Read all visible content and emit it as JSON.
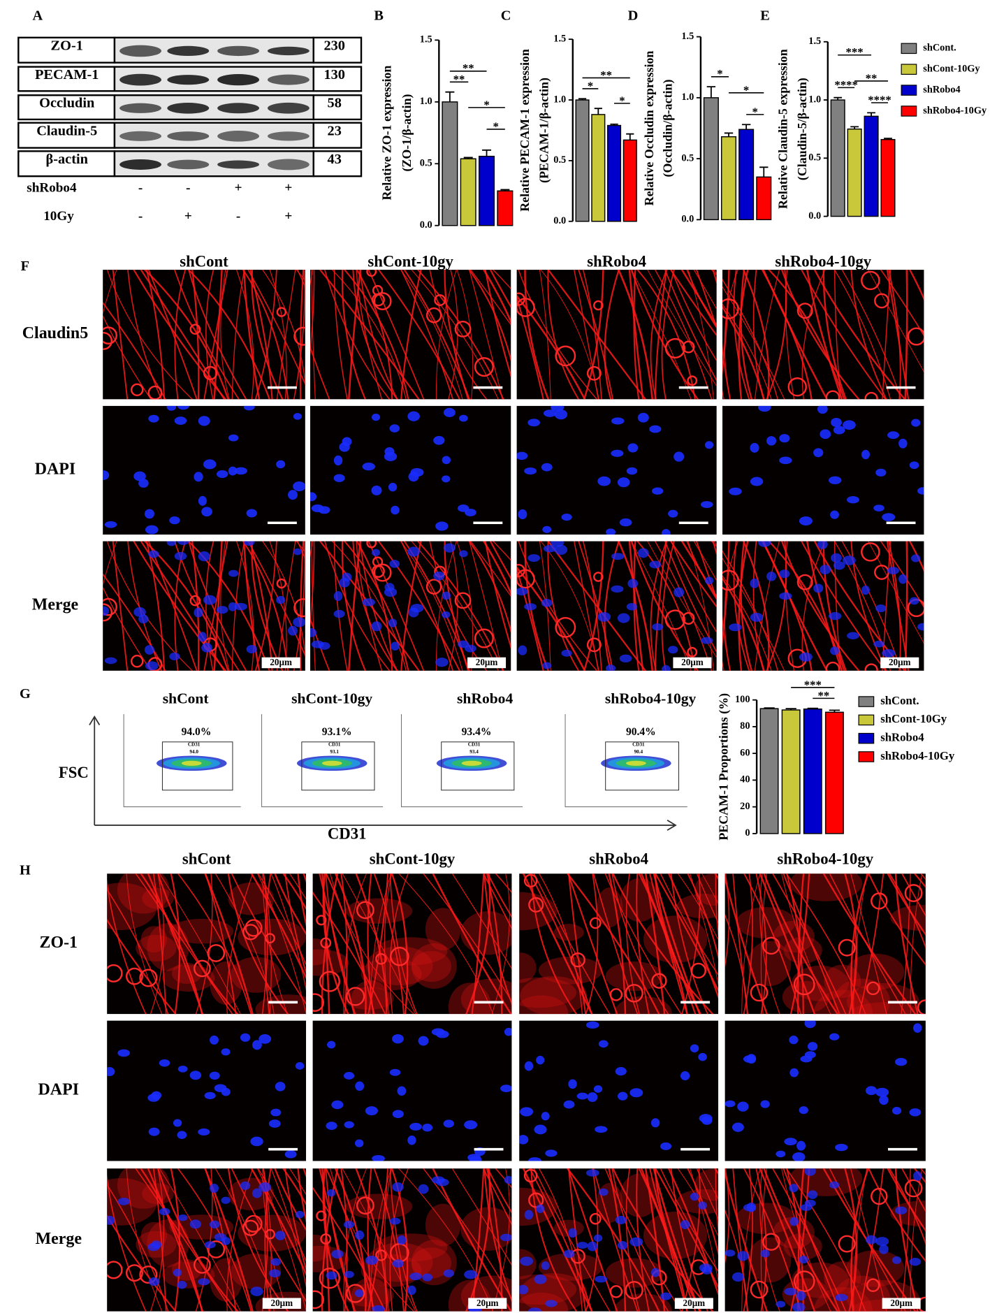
{
  "panel_labels": [
    "A",
    "B",
    "C",
    "D",
    "E",
    "F",
    "G",
    "H"
  ],
  "blot": {
    "proteins": [
      {
        "name": "ZO-1",
        "kda": "230"
      },
      {
        "name": "PECAM-1",
        "kda": "130"
      },
      {
        "name": "Occludin",
        "kda": "58"
      },
      {
        "name": "Claudin-5",
        "kda": "23"
      },
      {
        "name": "β-actin",
        "kda": "43"
      }
    ],
    "conditions": [
      {
        "name": "shRobo4",
        "signs": [
          "-",
          "-",
          "+",
          "+"
        ]
      },
      {
        "name": "10Gy",
        "signs": [
          "-",
          "+",
          "-",
          "+"
        ]
      }
    ]
  },
  "chart_data": [
    {
      "type": "bar",
      "ylabel": [
        "Relative ZO-1 expression",
        "(ZO-1/β-actin)"
      ],
      "ylim": [
        0,
        1.5
      ],
      "yticks": [
        {
          "value": 0,
          "label": "0.0"
        },
        0.5,
        {
          "value": 1,
          "label": "1.0"
        },
        1.5
      ],
      "values": [
        1.0,
        0.54,
        0.56,
        0.28
      ],
      "errors": [
        0.08,
        0.01,
        0.05,
        0.01
      ],
      "colors": [
        "#808080",
        "#c8c83a",
        "#0000cc",
        "#ff0000"
      ],
      "annotations": [
        {
          "text": "**",
          "pair": [
            0,
            1
          ]
        },
        {
          "text": "**",
          "pair": [
            0,
            2
          ]
        },
        {
          "text": "*",
          "pair": [
            2,
            3
          ]
        },
        {
          "text": "*",
          "pair": [
            1,
            3
          ]
        }
      ],
      "legend": [
        "shCont.",
        "shCont-10Gy",
        "shRobo4",
        "shRobo4-10Gy"
      ]
    },
    {
      "type": "bar",
      "ylabel": [
        "Relative PECAM-1 expression",
        "(PECAM-1/β-actin)"
      ],
      "ylim": [
        0,
        1.5
      ],
      "yticks": [
        {
          "value": 0,
          "label": "0.0"
        },
        0.5,
        {
          "value": 1,
          "label": "1.0"
        },
        1.5
      ],
      "values": [
        1.0,
        0.88,
        0.79,
        0.67
      ],
      "errors": [
        0.01,
        0.05,
        0.01,
        0.05
      ],
      "colors": [
        "#808080",
        "#c8c83a",
        "#0000cc",
        "#ff0000"
      ],
      "annotations": [
        {
          "text": "*",
          "pair": [
            0,
            1
          ]
        },
        {
          "text": "**",
          "pair": [
            0,
            3
          ]
        },
        {
          "text": "*",
          "pair": [
            2,
            3
          ]
        }
      ]
    },
    {
      "type": "bar",
      "ylabel": [
        "Relative Occludin expression",
        "(Occludin/β-actin)"
      ],
      "ylim": [
        0,
        1.5
      ],
      "yticks": [
        {
          "value": 0,
          "label": "0.0"
        },
        0.5,
        {
          "value": 1,
          "label": "1.0"
        },
        1.5
      ],
      "values": [
        1.0,
        0.68,
        0.74,
        0.35
      ],
      "errors": [
        0.09,
        0.03,
        0.04,
        0.08
      ],
      "colors": [
        "#808080",
        "#c8c83a",
        "#0000cc",
        "#ff0000"
      ],
      "annotations": [
        {
          "text": "*",
          "pair": [
            0,
            1
          ]
        },
        {
          "text": "*",
          "pair": [
            2,
            3
          ]
        },
        {
          "text": "*",
          "pair": [
            1,
            3
          ]
        }
      ]
    },
    {
      "type": "bar",
      "ylabel": [
        "Relative Claudin-5 expression",
        "(Claudin-5/β-actin)"
      ],
      "ylim": [
        0,
        1.5
      ],
      "yticks": [
        {
          "value": 0,
          "label": "0.0"
        },
        0.5,
        {
          "value": 1,
          "label": "1.0"
        },
        1.5
      ],
      "values": [
        1.0,
        0.75,
        0.86,
        0.66
      ],
      "errors": [
        0.02,
        0.02,
        0.03,
        0.01
      ],
      "colors": [
        "#808080",
        "#c8c83a",
        "#0000cc",
        "#ff0000"
      ],
      "annotations": [
        {
          "text": "****",
          "pair": [
            0,
            1
          ]
        },
        {
          "text": "****",
          "pair": [
            2,
            3
          ]
        },
        {
          "text": "**",
          "pair": [
            1,
            3
          ]
        },
        {
          "text": "***",
          "pair": [
            0,
            2
          ]
        }
      ]
    },
    {
      "type": "bar",
      "ylabel": [
        "PECAM-1 Proportions (%)"
      ],
      "ylim": [
        0,
        100
      ],
      "yticks": [
        0,
        20,
        40,
        60,
        80,
        100
      ],
      "values": [
        93.5,
        92.5,
        93.2,
        90.8
      ],
      "errors": [
        0.5,
        1.0,
        0.5,
        1.5
      ],
      "colors": [
        "#808080",
        "#c8c83a",
        "#0000cc",
        "#ff0000"
      ],
      "annotations": [
        {
          "text": "**",
          "pair": [
            2,
            3
          ]
        },
        {
          "text": "***",
          "pair": [
            1,
            3
          ]
        }
      ],
      "legend": [
        "shCont.",
        "shCont-10Gy",
        "shRobo4",
        "shRobo4-10Gy"
      ]
    }
  ],
  "microscopy_f": {
    "columns": [
      "shCont",
      "shCont-10gy",
      "shRobo4",
      "shRobo4-10gy"
    ],
    "rows": [
      "Claudin5",
      "DAPI",
      "Merge"
    ],
    "scale_bar": "20μm"
  },
  "flow": {
    "titles": [
      "shCont",
      "shCont-10gy",
      "shRobo4",
      "shRobo4-10gy"
    ],
    "percent_labels": [
      "94.0%",
      "93.1%",
      "93.4%",
      "90.4%"
    ],
    "gate_name": "CD31",
    "gate_values": [
      "94.0",
      "93.1",
      "93.4",
      "90.4"
    ],
    "y_axis": "FSC",
    "x_axis": "CD31"
  },
  "microscopy_h": {
    "columns": [
      "shCont",
      "shCont-10gy",
      "shRobo4",
      "shRobo4-10gy"
    ],
    "rows": [
      "ZO-1",
      "DAPI",
      "Merge"
    ],
    "scale_bar": "20μm"
  }
}
